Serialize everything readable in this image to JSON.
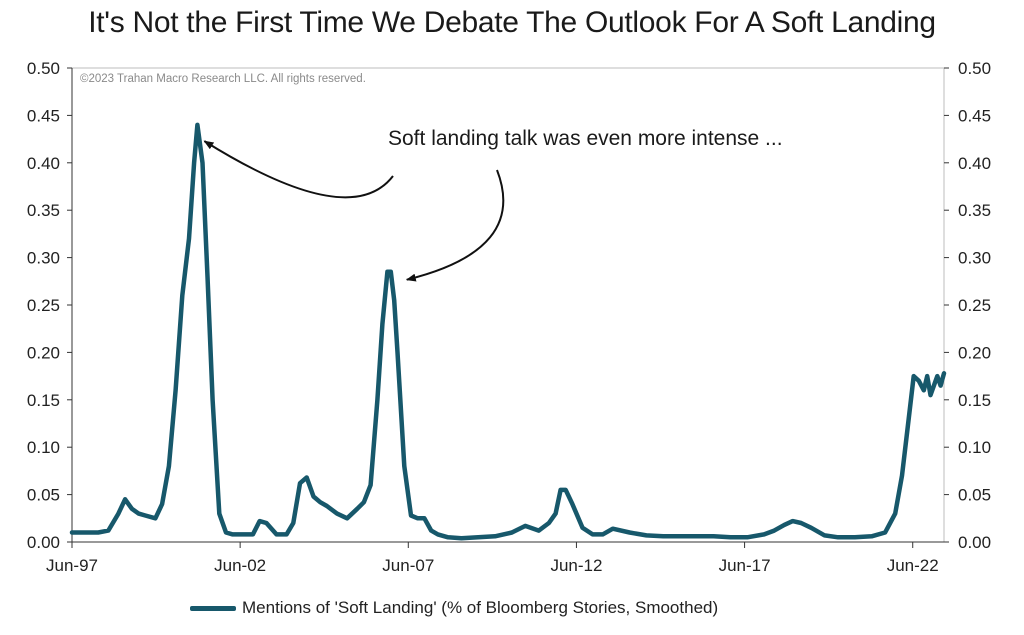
{
  "chart_data": {
    "type": "line",
    "title": "It's Not the First Time We Debate The Outlook For A Soft Landing",
    "copyright": "©2023 Trahan Macro Research LLC. All rights reserved.",
    "annotation": "Soft landing talk was even more intense ...",
    "xlabel": "",
    "ylabel": "",
    "xlim": [
      1997.42,
      2023.35
    ],
    "ylim": [
      0,
      0.5
    ],
    "x_ticks": [
      {
        "label": "Jun-97",
        "value": 1997.42
      },
      {
        "label": "Jun-02",
        "value": 2002.42
      },
      {
        "label": "Jun-07",
        "value": 2007.42
      },
      {
        "label": "Jun-12",
        "value": 2012.42
      },
      {
        "label": "Jun-17",
        "value": 2017.42
      },
      {
        "label": "Jun-22",
        "value": 2022.42
      }
    ],
    "y_ticks": [
      "0.00",
      "0.05",
      "0.10",
      "0.15",
      "0.20",
      "0.25",
      "0.30",
      "0.35",
      "0.40",
      "0.45",
      "0.50"
    ],
    "y_tick_values": [
      0,
      0.05,
      0.1,
      0.15,
      0.2,
      0.25,
      0.3,
      0.35,
      0.4,
      0.45,
      0.5
    ],
    "color": "#17586b",
    "arrow_targets": [
      {
        "x": 2001.0,
        "y": 0.425
      },
      {
        "x": 2006.9,
        "y": 0.283
      }
    ],
    "series": [
      {
        "name": "Mentions of 'Soft Landing' (% of Bloomberg Stories, Smoothed)",
        "x": [
          1997.42,
          1997.8,
          1998.2,
          1998.5,
          1998.8,
          1999.0,
          1999.2,
          1999.4,
          1999.6,
          1999.9,
          2000.1,
          2000.3,
          2000.5,
          2000.7,
          2000.9,
          2001.05,
          2001.15,
          2001.3,
          2001.45,
          2001.6,
          2001.8,
          2002.0,
          2002.2,
          2002.6,
          2002.8,
          2003.0,
          2003.2,
          2003.5,
          2003.8,
          2004.0,
          2004.2,
          2004.4,
          2004.6,
          2004.8,
          2005.0,
          2005.3,
          2005.6,
          2005.9,
          2006.1,
          2006.3,
          2006.5,
          2006.65,
          2006.8,
          2006.9,
          2007.0,
          2007.1,
          2007.3,
          2007.5,
          2007.7,
          2007.9,
          2008.1,
          2008.3,
          2008.6,
          2009.0,
          2009.5,
          2010.0,
          2010.5,
          2010.9,
          2011.3,
          2011.6,
          2011.8,
          2011.95,
          2012.1,
          2012.3,
          2012.6,
          2012.9,
          2013.2,
          2013.5,
          2014.0,
          2014.5,
          2015.0,
          2015.5,
          2016.0,
          2016.5,
          2017.0,
          2017.5,
          2018.0,
          2018.3,
          2018.6,
          2018.85,
          2019.1,
          2019.4,
          2019.8,
          2020.2,
          2020.7,
          2021.2,
          2021.6,
          2021.9,
          2022.1,
          2022.3,
          2022.45,
          2022.6,
          2022.75,
          2022.85,
          2022.95,
          2023.05,
          2023.15,
          2023.25,
          2023.35
        ],
        "values": [
          0.01,
          0.01,
          0.01,
          0.012,
          0.03,
          0.045,
          0.035,
          0.03,
          0.028,
          0.025,
          0.04,
          0.08,
          0.16,
          0.26,
          0.32,
          0.4,
          0.44,
          0.4,
          0.28,
          0.15,
          0.03,
          0.01,
          0.008,
          0.008,
          0.008,
          0.022,
          0.02,
          0.008,
          0.008,
          0.02,
          0.062,
          0.068,
          0.048,
          0.042,
          0.038,
          0.03,
          0.025,
          0.035,
          0.042,
          0.06,
          0.15,
          0.23,
          0.285,
          0.285,
          0.255,
          0.2,
          0.08,
          0.028,
          0.025,
          0.025,
          0.012,
          0.008,
          0.005,
          0.004,
          0.005,
          0.006,
          0.01,
          0.017,
          0.012,
          0.02,
          0.03,
          0.055,
          0.055,
          0.04,
          0.015,
          0.008,
          0.008,
          0.014,
          0.01,
          0.007,
          0.006,
          0.006,
          0.006,
          0.006,
          0.005,
          0.005,
          0.008,
          0.012,
          0.018,
          0.022,
          0.02,
          0.015,
          0.007,
          0.005,
          0.005,
          0.006,
          0.01,
          0.03,
          0.07,
          0.13,
          0.175,
          0.17,
          0.16,
          0.175,
          0.155,
          0.165,
          0.175,
          0.165,
          0.178
        ]
      }
    ]
  }
}
